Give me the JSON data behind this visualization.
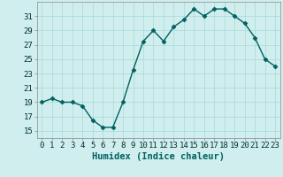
{
  "x": [
    0,
    1,
    2,
    3,
    4,
    5,
    6,
    7,
    8,
    9,
    10,
    11,
    12,
    13,
    14,
    15,
    16,
    17,
    18,
    19,
    20,
    21,
    22,
    23
  ],
  "y": [
    19,
    19.5,
    19,
    19,
    18.5,
    16.5,
    15.5,
    15.5,
    19,
    23.5,
    27.5,
    29,
    27.5,
    29.5,
    30.5,
    32,
    31,
    32,
    32,
    31,
    30,
    28,
    25,
    24
  ],
  "line_color": "#006060",
  "marker_color": "#006060",
  "bg_color": "#d0eeee",
  "grid_color": "#a8d8d8",
  "xlabel": "Humidex (Indice chaleur)",
  "xlim": [
    -0.5,
    23.5
  ],
  "ylim": [
    14,
    33
  ],
  "yticks": [
    15,
    17,
    19,
    21,
    23,
    25,
    27,
    29,
    31
  ],
  "xticks": [
    0,
    1,
    2,
    3,
    4,
    5,
    6,
    7,
    8,
    9,
    10,
    11,
    12,
    13,
    14,
    15,
    16,
    17,
    18,
    19,
    20,
    21,
    22,
    23
  ],
  "fontsize_axis": 6.5,
  "fontsize_xlabel": 7.5,
  "marker_size": 2.5,
  "line_width": 1.0
}
